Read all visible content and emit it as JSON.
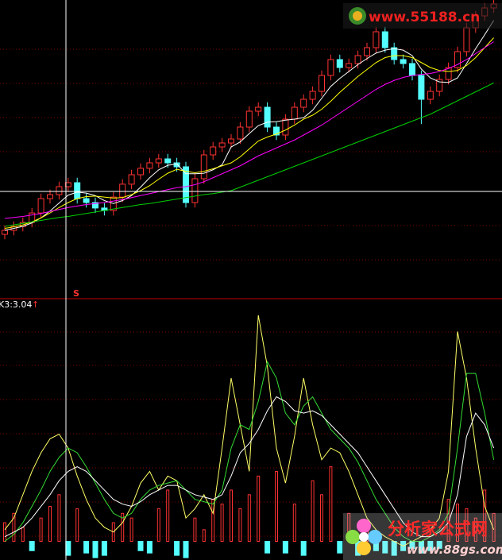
{
  "chart_data": [
    {
      "type": "candlestick",
      "up_color": "#ff3232",
      "down_color": "#54ffff",
      "ylim": [
        8,
        14
      ],
      "open": [
        9.28,
        9.36,
        9.44,
        9.52,
        9.71,
        10.0,
        10.08,
        10.24,
        10.32,
        10.0,
        9.92,
        9.81,
        9.76,
        10.03,
        10.29,
        10.48,
        10.61,
        10.72,
        10.8,
        10.72,
        10.64,
        9.92,
        10.4,
        10.88,
        11.04,
        11.12,
        11.2,
        11.44,
        11.76,
        11.84,
        11.44,
        11.28,
        11.6,
        11.84,
        12.0,
        12.16,
        12.48,
        12.8,
        12.64,
        12.72,
        12.88,
        13.04,
        13.36,
        13.04,
        12.8,
        12.72,
        12.48,
        12.0,
        12.16,
        12.4,
        12.64,
        12.96,
        13.44,
        13.68,
        13.84
      ],
      "high": [
        9.46,
        9.54,
        9.62,
        9.81,
        10.1,
        10.18,
        10.34,
        10.42,
        10.42,
        10.1,
        10.02,
        9.91,
        10.13,
        10.39,
        10.58,
        10.71,
        10.82,
        10.9,
        10.9,
        10.82,
        10.74,
        10.5,
        10.98,
        11.14,
        11.22,
        11.3,
        11.54,
        11.86,
        11.94,
        11.94,
        11.54,
        11.7,
        11.94,
        12.1,
        12.26,
        12.58,
        12.9,
        12.9,
        12.82,
        12.98,
        13.14,
        13.46,
        13.46,
        13.14,
        12.9,
        12.82,
        12.58,
        12.26,
        12.5,
        12.74,
        13.06,
        13.54,
        13.78,
        13.94,
        14.02
      ],
      "low": [
        9.18,
        9.26,
        9.34,
        9.42,
        9.61,
        9.9,
        9.98,
        10.14,
        9.9,
        9.82,
        9.71,
        9.66,
        9.66,
        9.93,
        10.19,
        10.38,
        10.51,
        10.62,
        10.62,
        10.54,
        9.82,
        9.82,
        10.3,
        10.78,
        10.94,
        11.02,
        11.1,
        11.34,
        11.66,
        11.34,
        11.18,
        11.18,
        11.5,
        11.74,
        11.9,
        12.06,
        12.38,
        12.54,
        12.54,
        12.62,
        12.78,
        12.94,
        12.94,
        12.7,
        12.62,
        12.38,
        11.5,
        11.9,
        12.06,
        12.3,
        12.54,
        12.86,
        13.34,
        13.58,
        13.74
      ],
      "close": [
        9.36,
        9.44,
        9.52,
        9.71,
        10.0,
        10.08,
        10.24,
        10.32,
        10.0,
        9.92,
        9.81,
        9.76,
        10.03,
        10.29,
        10.48,
        10.61,
        10.72,
        10.8,
        10.72,
        10.64,
        9.92,
        10.4,
        10.88,
        11.04,
        11.12,
        11.2,
        11.44,
        11.76,
        11.84,
        11.44,
        11.28,
        11.6,
        11.84,
        12.0,
        12.16,
        12.48,
        12.8,
        12.64,
        12.72,
        12.88,
        13.04,
        13.36,
        13.04,
        12.8,
        12.72,
        12.48,
        12.0,
        12.16,
        12.4,
        12.64,
        12.96,
        13.44,
        13.68,
        13.84,
        13.92
      ],
      "series": [
        {
          "color": "#ffffff",
          "values": [
            9.36,
            9.4,
            9.44,
            9.51,
            9.61,
            9.75,
            9.91,
            10.07,
            10.13,
            10.11,
            10.06,
            9.96,
            9.9,
            9.96,
            10.06,
            10.23,
            10.42,
            10.58,
            10.67,
            10.7,
            10.5,
            10.5,
            10.51,
            10.58,
            10.68,
            11.04,
            11.14,
            11.31,
            11.47,
            11.54,
            11.55,
            11.58,
            11.6,
            11.63,
            11.78,
            12.02,
            12.26,
            12.42,
            12.56,
            12.7,
            12.82,
            12.93,
            12.99,
            13.02,
            12.99,
            12.88,
            12.61,
            12.43,
            12.35,
            12.34,
            12.43,
            12.72,
            13.02,
            13.3,
            13.59
          ]
        },
        {
          "color": "#ffff00",
          "values": [
            9.4,
            9.43,
            9.47,
            9.53,
            9.61,
            9.71,
            9.82,
            9.92,
            10.0,
            10.04,
            10.05,
            10.03,
            10.01,
            10.02,
            10.08,
            10.16,
            10.26,
            10.39,
            10.51,
            10.59,
            10.55,
            10.52,
            10.55,
            10.6,
            10.66,
            10.72,
            10.84,
            11.0,
            11.16,
            11.24,
            11.3,
            11.38,
            11.48,
            11.6,
            11.68,
            11.8,
            11.96,
            12.14,
            12.3,
            12.46,
            12.6,
            12.74,
            12.84,
            12.88,
            12.88,
            12.84,
            12.74,
            12.64,
            12.58,
            12.56,
            12.58,
            12.68,
            12.84,
            13.04,
            13.24
          ]
        },
        {
          "color": "#ff00ff",
          "values": [
            9.6,
            9.62,
            9.64,
            9.67,
            9.7,
            9.74,
            9.78,
            9.82,
            9.85,
            9.88,
            9.9,
            9.92,
            9.95,
            9.98,
            10.02,
            10.06,
            10.1,
            10.14,
            10.18,
            10.22,
            10.24,
            10.28,
            10.34,
            10.42,
            10.5,
            10.58,
            10.66,
            10.76,
            10.86,
            10.94,
            11.02,
            11.1,
            11.18,
            11.28,
            11.38,
            11.48,
            11.6,
            11.72,
            11.84,
            11.96,
            12.08,
            12.2,
            12.3,
            12.38,
            12.44,
            12.48,
            12.5,
            12.52,
            12.56,
            12.62,
            12.7,
            12.8,
            12.92,
            13.04,
            13.16
          ]
        },
        {
          "color": "#00d000",
          "values": [
            9.44,
            9.47,
            9.5,
            9.53,
            9.56,
            9.59,
            9.62,
            9.64,
            9.67,
            9.7,
            9.73,
            9.76,
            9.79,
            9.82,
            9.85,
            9.88,
            9.9,
            9.93,
            9.96,
            9.99,
            10.02,
            10.05,
            10.08,
            10.1,
            10.13,
            10.16,
            10.23,
            10.3,
            10.37,
            10.44,
            10.51,
            10.58,
            10.65,
            10.72,
            10.79,
            10.86,
            10.93,
            11.0,
            11.07,
            11.14,
            11.21,
            11.28,
            11.35,
            11.42,
            11.49,
            11.56,
            11.63,
            11.7,
            11.79,
            11.88,
            11.97,
            12.06,
            12.15,
            12.24,
            12.33
          ]
        }
      ],
      "signal_label": "S"
    },
    {
      "type": "bar",
      "title": "K3:3.04",
      "title_marker": "↑",
      "up_color": "#ff3232",
      "down_color": "#54ffff",
      "ylim": [
        -8,
        100
      ],
      "values": [
        8,
        12,
        6,
        -4,
        10,
        15,
        20,
        -6,
        14,
        -5,
        -7,
        -6,
        8,
        12,
        10,
        -4,
        -5,
        14,
        22,
        -6,
        -7,
        10,
        5,
        18,
        16,
        22,
        14,
        20,
        28,
        -5,
        30,
        -5,
        16,
        -6,
        26,
        20,
        32,
        -5,
        12,
        -6,
        8,
        -4,
        -5,
        -6,
        -4,
        -3,
        -5,
        -4,
        -3,
        18,
        16,
        14,
        10,
        22,
        12
      ],
      "series": [
        {
          "color": "#ffff66",
          "values": [
            5,
            10,
            20,
            30,
            38,
            44,
            46,
            40,
            28,
            18,
            10,
            6,
            4,
            8,
            15,
            25,
            30,
            22,
            28,
            26,
            10,
            14,
            20,
            12,
            40,
            70,
            50,
            30,
            97,
            75,
            40,
            25,
            45,
            70,
            50,
            35,
            40,
            38,
            30,
            20,
            10,
            5,
            2,
            0,
            -2,
            0,
            2,
            5,
            10,
            30,
            90,
            70,
            40,
            15,
            5
          ]
        },
        {
          "color": "#33dd33",
          "values": [
            0,
            3,
            8,
            15,
            22,
            30,
            36,
            40,
            38,
            32,
            25,
            18,
            12,
            10,
            12,
            18,
            22,
            24,
            25,
            26,
            22,
            18,
            17,
            16,
            22,
            40,
            50,
            48,
            60,
            77,
            70,
            55,
            50,
            58,
            62,
            55,
            48,
            44,
            40,
            34,
            26,
            18,
            12,
            6,
            2,
            0,
            0,
            2,
            5,
            12,
            40,
            72,
            72,
            55,
            35
          ]
        },
        {
          "color": "#ffffff",
          "values": [
            2,
            4,
            6,
            10,
            15,
            20,
            26,
            30,
            32,
            30,
            26,
            22,
            18,
            16,
            15,
            17,
            20,
            22,
            24,
            24,
            22,
            20,
            19,
            18,
            20,
            28,
            38,
            42,
            48,
            56,
            62,
            60,
            56,
            55,
            56,
            54,
            50,
            46,
            42,
            38,
            32,
            26,
            20,
            14,
            8,
            4,
            2,
            2,
            4,
            8,
            20,
            45,
            55,
            50,
            40
          ]
        }
      ]
    }
  ],
  "watermarks": {
    "top": "www.55188.cn",
    "bottom_title": "分析家公式网",
    "bottom_url": "www.88gs.com"
  }
}
